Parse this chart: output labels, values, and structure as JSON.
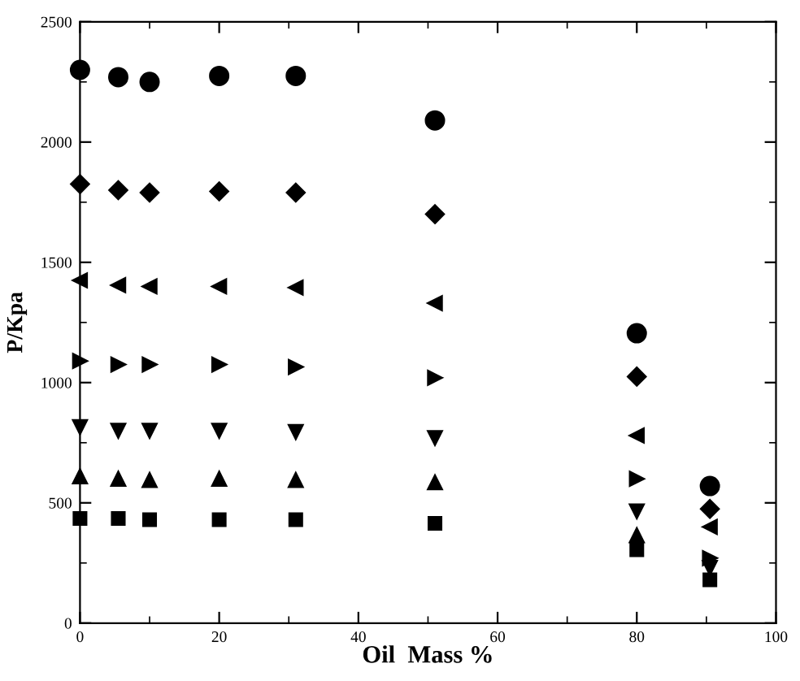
{
  "chart_data": {
    "type": "scatter",
    "xlabel": "Oil  Mass %",
    "ylabel": "P/Kpa",
    "x": [
      0,
      5.5,
      10,
      20,
      31,
      51,
      80,
      90.5
    ],
    "xlim": [
      0,
      100
    ],
    "xticks": [
      0,
      20,
      40,
      60,
      80,
      100
    ],
    "ylim": [
      0,
      2500
    ],
    "yticks": [
      0,
      500,
      1000,
      1500,
      2000,
      2500
    ],
    "grid": false,
    "series": [
      {
        "color": "#000000",
        "marker": "circle",
        "values": [
          2300,
          2270,
          2250,
          2275,
          2275,
          2090,
          1205,
          570
        ]
      },
      {
        "color": "#000000",
        "marker": "diamond",
        "values": [
          1825,
          1800,
          1790,
          1795,
          1790,
          1700,
          1025,
          475
        ]
      },
      {
        "color": "#000000",
        "marker": "triangle-left",
        "values": [
          1425,
          1405,
          1400,
          1400,
          1395,
          1330,
          780,
          400
        ]
      },
      {
        "color": "#000000",
        "marker": "triangle-right",
        "values": [
          1090,
          1075,
          1075,
          1075,
          1065,
          1020,
          600,
          270
        ]
      },
      {
        "color": "#000000",
        "marker": "triangle-down",
        "values": [
          815,
          800,
          800,
          800,
          795,
          770,
          465,
          230
        ]
      },
      {
        "color": "#000000",
        "marker": "triangle",
        "values": [
          610,
          600,
          595,
          600,
          595,
          585,
          365,
          null
        ]
      },
      {
        "color": "#000000",
        "marker": "square",
        "values": [
          435,
          435,
          430,
          430,
          430,
          415,
          305,
          180
        ]
      }
    ]
  }
}
